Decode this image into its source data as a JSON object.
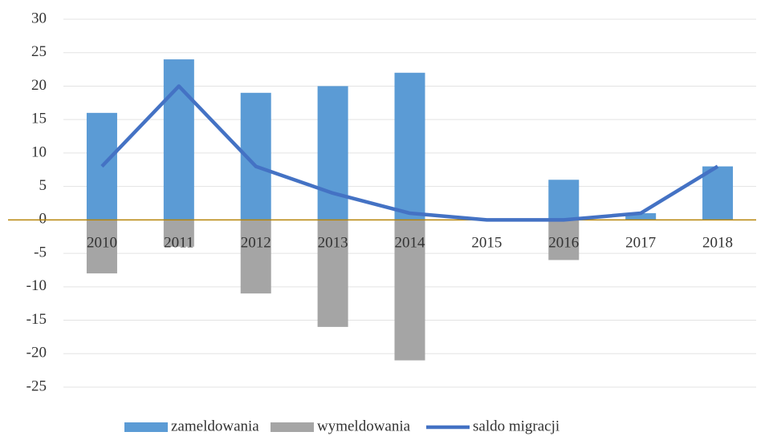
{
  "chart_data": {
    "type": "bar-line",
    "categories": [
      "2010",
      "2011",
      "2012",
      "2013",
      "2014",
      "2015",
      "2016",
      "2017",
      "2018"
    ],
    "series": [
      {
        "name": "zameldowania",
        "type": "bar",
        "color": "#5b9bd5",
        "values": [
          16,
          24,
          19,
          20,
          22,
          0,
          6,
          1,
          8
        ]
      },
      {
        "name": "wymeldowania",
        "type": "bar",
        "color": "#a5a5a5",
        "values": [
          -8,
          -4,
          -11,
          -16,
          -21,
          0,
          -6,
          0,
          0
        ]
      },
      {
        "name": "saldo migracji",
        "type": "line",
        "color": "#4472c4",
        "values": [
          8,
          20,
          8,
          4,
          1,
          0,
          0,
          1,
          8
        ]
      }
    ],
    "ylim": [
      -25,
      30
    ],
    "yticks": [
      -25,
      -20,
      -15,
      -10,
      -5,
      0,
      5,
      10,
      15,
      20,
      25,
      30
    ],
    "grid": true,
    "legend": "bottom"
  }
}
